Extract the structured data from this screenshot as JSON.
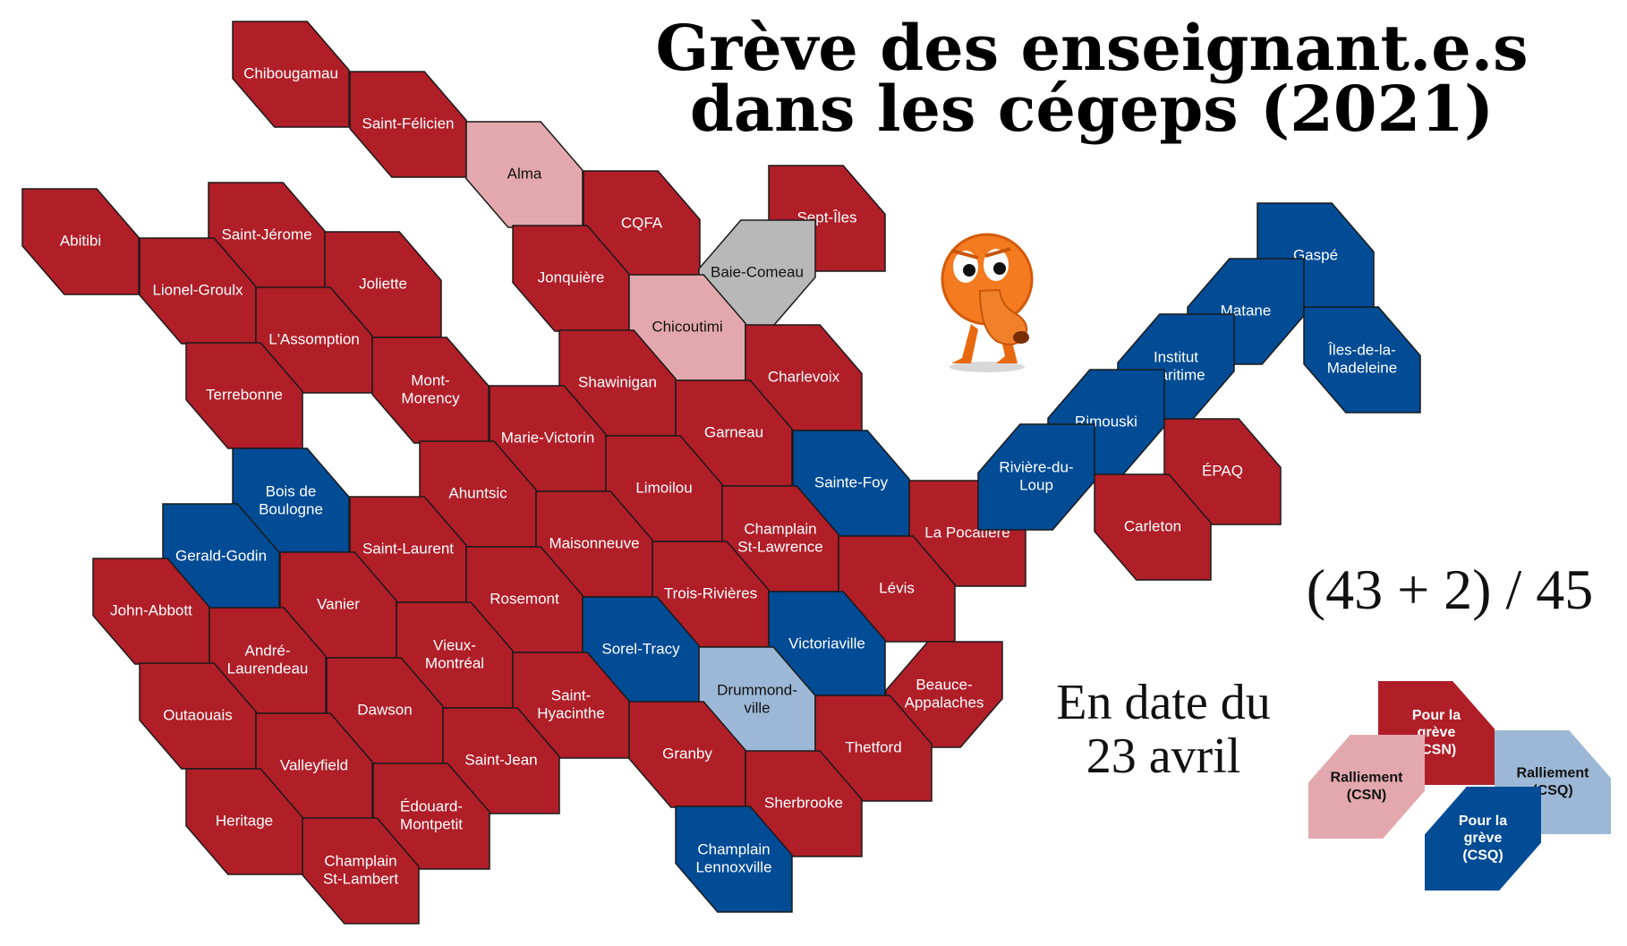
{
  "title": {
    "line1": "Grève des enseignant.e.s",
    "line2": "dans les cégeps (2021)"
  },
  "tally": "(43 + 2) / 45",
  "date": {
    "line1": "En date du",
    "line2": "23 avril"
  },
  "mascot": {
    "icon": "orange-creature-mascot"
  },
  "colors": {
    "greve_csn": "#b01e28",
    "ralliement_csn": "#e3a8ad",
    "greve_csq": "#024b95",
    "ralliement_csq": "#9cb8d6",
    "none": "#b8b8b8"
  },
  "cegeps": [
    {
      "name": "Chibougamau",
      "status": "greve_csn"
    },
    {
      "name": "Saint-Félicien",
      "status": "greve_csn"
    },
    {
      "name": "Alma",
      "status": "ralliement_csn"
    },
    {
      "name": "CQFA",
      "status": "greve_csn"
    },
    {
      "name": "Sept-Îles",
      "status": "greve_csn"
    },
    {
      "name": "Abitibi",
      "status": "greve_csn"
    },
    {
      "name": "Saint-Jérome",
      "status": "greve_csn"
    },
    {
      "name": "Lionel-Groulx",
      "status": "greve_csn"
    },
    {
      "name": "Joliette",
      "status": "greve_csn"
    },
    {
      "name": "Jonquière",
      "status": "greve_csn"
    },
    {
      "name": "Baie-Comeau",
      "status": "none"
    },
    {
      "name": "Chicoutimi",
      "status": "ralliement_csn"
    },
    {
      "name": "L'Assomption",
      "status": "greve_csn"
    },
    {
      "name": "Terrebonne",
      "status": "greve_csn"
    },
    {
      "name": "Mont-Morency",
      "status": "greve_csn"
    },
    {
      "name": "Shawinigan",
      "status": "greve_csn"
    },
    {
      "name": "Charlevoix",
      "status": "greve_csn"
    },
    {
      "name": "Marie-Victorin",
      "status": "greve_csn"
    },
    {
      "name": "Garneau",
      "status": "greve_csn"
    },
    {
      "name": "Bois de Boulogne",
      "status": "greve_csq"
    },
    {
      "name": "Ahuntsic",
      "status": "greve_csn"
    },
    {
      "name": "Limoilou",
      "status": "greve_csn"
    },
    {
      "name": "Sainte-Foy",
      "status": "greve_csq"
    },
    {
      "name": "Gerald-Godin",
      "status": "greve_csq"
    },
    {
      "name": "Saint-Laurent",
      "status": "greve_csn"
    },
    {
      "name": "Maisonneuve",
      "status": "greve_csn"
    },
    {
      "name": "Champlain St-Lawrence",
      "status": "greve_csn"
    },
    {
      "name": "La Pocatière",
      "status": "greve_csn"
    },
    {
      "name": "John-Abbott",
      "status": "greve_csn"
    },
    {
      "name": "Vanier",
      "status": "greve_csn"
    },
    {
      "name": "Rosemont",
      "status": "greve_csn"
    },
    {
      "name": "Trois-Rivières",
      "status": "greve_csn"
    },
    {
      "name": "Lévis",
      "status": "greve_csn"
    },
    {
      "name": "André-Laurendeau",
      "status": "greve_csn"
    },
    {
      "name": "Vieux-Montréal",
      "status": "greve_csn"
    },
    {
      "name": "Sorel-Tracy",
      "status": "greve_csq"
    },
    {
      "name": "Victoriaville",
      "status": "greve_csq"
    },
    {
      "name": "Outaouais",
      "status": "greve_csn"
    },
    {
      "name": "Dawson",
      "status": "greve_csn"
    },
    {
      "name": "Saint-Hyacinthe",
      "status": "greve_csn"
    },
    {
      "name": "Drummondville",
      "status": "ralliement_csq"
    },
    {
      "name": "Beauce-Appalaches",
      "status": "greve_csn"
    },
    {
      "name": "Valleyfield",
      "status": "greve_csn"
    },
    {
      "name": "Saint-Jean",
      "status": "greve_csn"
    },
    {
      "name": "Granby",
      "status": "greve_csn"
    },
    {
      "name": "Thetford",
      "status": "greve_csn"
    },
    {
      "name": "Heritage",
      "status": "greve_csn"
    },
    {
      "name": "Édouard-Montpetit",
      "status": "greve_csn"
    },
    {
      "name": "Sherbrooke",
      "status": "greve_csn"
    },
    {
      "name": "Champlain St-Lambert",
      "status": "greve_csn"
    },
    {
      "name": "Champlain Lennoxville",
      "status": "greve_csq"
    },
    {
      "name": "Gaspé",
      "status": "greve_csq"
    },
    {
      "name": "Matane",
      "status": "greve_csq"
    },
    {
      "name": "Îles-de-la-Madeleine",
      "status": "greve_csq"
    },
    {
      "name": "Institut maritime",
      "status": "greve_csq"
    },
    {
      "name": "Rimouski",
      "status": "greve_csq"
    },
    {
      "name": "Rivière-du-Loup",
      "status": "greve_csq"
    },
    {
      "name": "ÉPAQ",
      "status": "greve_csn"
    },
    {
      "name": "Carleton",
      "status": "greve_csn"
    }
  ],
  "legend": [
    {
      "label": "Pour la grève (CSN)",
      "status": "greve_csn"
    },
    {
      "label": "Ralliement (CSN)",
      "status": "ralliement_csn"
    },
    {
      "label": "Ralliement (CSQ)",
      "status": "ralliement_csq"
    },
    {
      "label": "Pour la grève (CSQ)",
      "status": "greve_csq"
    }
  ]
}
